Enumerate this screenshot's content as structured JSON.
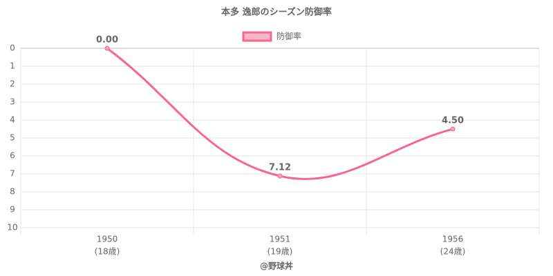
{
  "chart_data": {
    "type": "line",
    "title": "本多 逸郎のシーズン防御率",
    "categories": [
      [
        "1950",
        "(18歳)"
      ],
      [
        "1951",
        "(19歳)"
      ],
      [
        "1956",
        "(24歳)"
      ]
    ],
    "series": [
      {
        "name": "防御率",
        "color": "#f4678e",
        "values": [
          0.0,
          7.12,
          4.5
        ],
        "value_labels": [
          "0.00",
          "7.12",
          "4.50"
        ]
      }
    ],
    "ylim": [
      0,
      10
    ],
    "yticks": [
      0,
      1,
      2,
      3,
      4,
      5,
      6,
      7,
      8,
      9,
      10
    ],
    "y_reversed": true,
    "grid": true,
    "legend": "top",
    "footer": "@野球丼"
  }
}
